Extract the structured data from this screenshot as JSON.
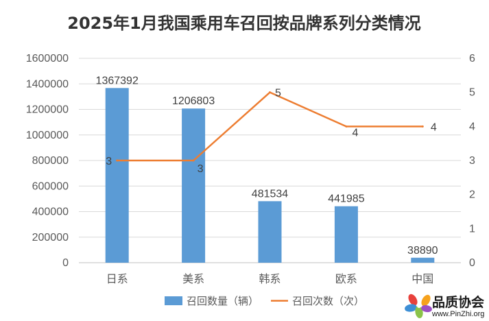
{
  "chart_data": {
    "type": "bar",
    "title": "2025年1月我国乘用车召回按品牌系列分类情况",
    "categories": [
      "日系",
      "美系",
      "韩系",
      "欧系",
      "中国"
    ],
    "series": [
      {
        "name": "召回数量（辆）",
        "type": "bar",
        "axis": "left",
        "values": [
          1367392,
          1206803,
          481534,
          441985,
          38890
        ],
        "labels": [
          "1367392",
          "1206803",
          "481534",
          "441985",
          "38890"
        ],
        "color": "#5B9BD5"
      },
      {
        "name": "召回次数（次）",
        "type": "line",
        "axis": "right",
        "values": [
          3,
          3,
          5,
          4,
          4
        ],
        "labels": [
          "3",
          "3",
          "5",
          "4",
          "4"
        ],
        "color": "#ED7D31"
      }
    ],
    "y_left": {
      "min": 0,
      "max": 1600000,
      "step": 200000,
      "ticks": [
        "0",
        "200000",
        "400000",
        "600000",
        "800000",
        "1000000",
        "1200000",
        "1400000",
        "1600000"
      ]
    },
    "y_right": {
      "min": 0,
      "max": 6,
      "step": 1,
      "ticks": [
        "0",
        "1",
        "2",
        "3",
        "4",
        "5",
        "6"
      ]
    },
    "grid": true,
    "legend_position": "bottom"
  },
  "watermark": {
    "name": "品质协会",
    "url": "www.PinZhi.org"
  }
}
